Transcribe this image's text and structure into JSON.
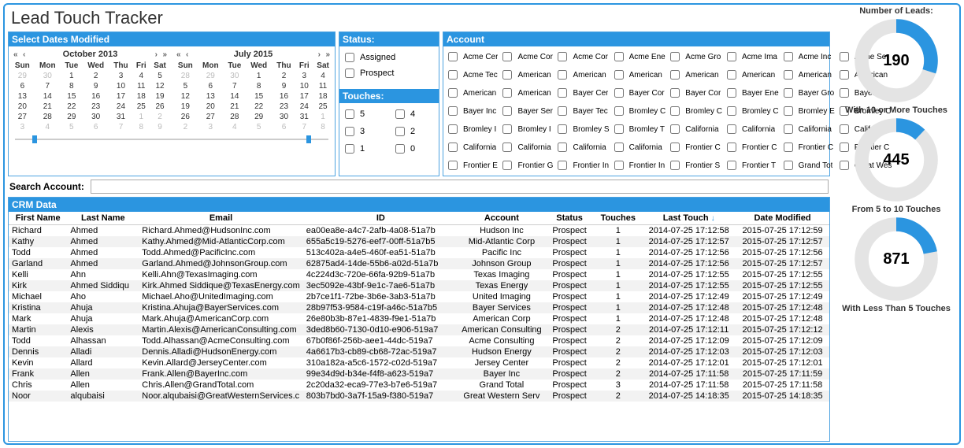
{
  "colors": {
    "accent": "#2b95e0",
    "track": "#e4e4e4",
    "text": "#333333",
    "dim": "#bbbbbb",
    "rowAlt": "#f2f2f2"
  },
  "title": "Lead Touch Tracker",
  "dates": {
    "header": "Select Dates Modified",
    "left": {
      "label": "October 2013",
      "days": [
        "Sun",
        "Mon",
        "Tue",
        "Wed",
        "Thu",
        "Fri",
        "Sat"
      ],
      "cells": [
        [
          "29",
          "30",
          "1",
          "2",
          "3",
          "4",
          "5"
        ],
        [
          "6",
          "7",
          "8",
          "9",
          "10",
          "11",
          "12"
        ],
        [
          "13",
          "14",
          "15",
          "16",
          "17",
          "18",
          "19"
        ],
        [
          "20",
          "21",
          "22",
          "23",
          "24",
          "25",
          "26"
        ],
        [
          "27",
          "28",
          "29",
          "30",
          "31",
          "1",
          "2"
        ],
        [
          "3",
          "4",
          "5",
          "6",
          "7",
          "8",
          "9"
        ]
      ],
      "dim": [
        [
          0,
          0
        ],
        [
          0,
          1
        ],
        [
          4,
          5
        ],
        [
          4,
          6
        ],
        [
          5,
          0
        ],
        [
          5,
          1
        ],
        [
          5,
          2
        ],
        [
          5,
          3
        ],
        [
          5,
          4
        ],
        [
          5,
          5
        ],
        [
          5,
          6
        ]
      ]
    },
    "right": {
      "label": "July 2015",
      "days": [
        "Sun",
        "Mon",
        "Tue",
        "Wed",
        "Thu",
        "Fri",
        "Sat"
      ],
      "cells": [
        [
          "28",
          "29",
          "30",
          "1",
          "2",
          "3",
          "4"
        ],
        [
          "5",
          "6",
          "7",
          "8",
          "9",
          "10",
          "11"
        ],
        [
          "12",
          "13",
          "14",
          "15",
          "16",
          "17",
          "18"
        ],
        [
          "19",
          "20",
          "21",
          "22",
          "23",
          "24",
          "25"
        ],
        [
          "26",
          "27",
          "28",
          "29",
          "30",
          "31",
          "1"
        ],
        [
          "2",
          "3",
          "4",
          "5",
          "6",
          "7",
          "8"
        ]
      ],
      "dim": [
        [
          0,
          0
        ],
        [
          0,
          1
        ],
        [
          0,
          2
        ],
        [
          4,
          6
        ],
        [
          5,
          0
        ],
        [
          5,
          1
        ],
        [
          5,
          2
        ],
        [
          5,
          3
        ],
        [
          5,
          4
        ],
        [
          5,
          5
        ],
        [
          5,
          6
        ]
      ]
    }
  },
  "status": {
    "header": "Status:",
    "items": [
      "Assigned",
      "Prospect"
    ]
  },
  "touches": {
    "header": "Touches:",
    "items": [
      "5",
      "4",
      "3",
      "2",
      "1",
      "0"
    ]
  },
  "account": {
    "header": "Account",
    "items": [
      "Acme Cer",
      "Acme Cor",
      "Acme Cor",
      "Acme Ene",
      "Acme Gro",
      "Acme Ima",
      "Acme Inc",
      "Acme Ser",
      "Acme Tec",
      "American",
      "American",
      "American",
      "American",
      "American",
      "American",
      "American",
      "American",
      "American",
      "Bayer Cer",
      "Bayer Cor",
      "Bayer Cor",
      "Bayer Ene",
      "Bayer Gro",
      "Bayer Ima",
      "Bayer Inc",
      "Bayer Ser",
      "Bayer Tec",
      "Bromley C",
      "Bromley C",
      "Bromley C",
      "Bromley E",
      "Bromley C",
      "Bromley I",
      "Bromley I",
      "Bromley S",
      "Bromley T",
      "California",
      "California",
      "California",
      "California",
      "California",
      "California",
      "California",
      "California",
      "Frontier C",
      "Frontier C",
      "Frontier C",
      "Frontier C",
      "Frontier E",
      "Frontier G",
      "Frontier In",
      "Frontier In",
      "Frontier S",
      "Frontier T",
      "Grand Tot",
      "Great Wes"
    ]
  },
  "search": {
    "label": "Search Account:",
    "value": ""
  },
  "crm": {
    "header": "CRM Data",
    "columns": [
      "First Name",
      "Last Name",
      "Email",
      "ID",
      "Account",
      "Status",
      "Touches",
      "Last Touch",
      "Date Modified"
    ],
    "sortCol": 7,
    "rows": [
      [
        "Richard",
        "Ahmed",
        "Richard.Ahmed@HudsonInc.com",
        "ea00ea8e-a4c7-2afb-4a08-51a7b",
        "Hudson Inc",
        "Prospect",
        "1",
        "2014-07-25 17:12:58",
        "2015-07-25 17:12:59"
      ],
      [
        "Kathy",
        "Ahmed",
        "Kathy.Ahmed@Mid-AtlanticCorp.com",
        "655a5c19-5276-eef7-00ff-51a7b5",
        "Mid-Atlantic Corp",
        "Prospect",
        "1",
        "2014-07-25 17:12:57",
        "2015-07-25 17:12:57"
      ],
      [
        "Todd",
        "Ahmed",
        "Todd.Ahmed@PacificInc.com",
        "513c402a-a4e5-460f-ea51-51a7b",
        "Pacific Inc",
        "Prospect",
        "1",
        "2014-07-25 17:12:56",
        "2015-07-25 17:12:56"
      ],
      [
        "Garland",
        "Ahmed",
        "Garland.Ahmed@JohnsonGroup.com",
        "62875ad4-14de-55b6-a02d-51a7b",
        "Johnson Group",
        "Prospect",
        "1",
        "2014-07-25 17:12:56",
        "2015-07-25 17:12:57"
      ],
      [
        "Kelli",
        "Ahn",
        "Kelli.Ahn@TexasImaging.com",
        "4c224d3c-720e-66fa-92b9-51a7b",
        "Texas Imaging",
        "Prospect",
        "1",
        "2014-07-25 17:12:55",
        "2015-07-25 17:12:55"
      ],
      [
        "Kirk",
        "Ahmed Siddiqu",
        "Kirk.Ahmed Siddique@TexasEnergy.com",
        "3ec5092e-43bf-9e1c-7ae6-51a7b",
        "Texas Energy",
        "Prospect",
        "1",
        "2014-07-25 17:12:55",
        "2015-07-25 17:12:55"
      ],
      [
        "Michael",
        "Aho",
        "Michael.Aho@UnitedImaging.com",
        "2b7ce1f1-72be-3b6e-3ab3-51a7b",
        "United Imaging",
        "Prospect",
        "1",
        "2014-07-25 17:12:49",
        "2015-07-25 17:12:49"
      ],
      [
        "Kristina",
        "Ahuja",
        "Kristina.Ahuja@BayerServices.com",
        "28b97f53-9584-c19f-a46c-51a7b5",
        "Bayer Services",
        "Prospect",
        "1",
        "2014-07-25 17:12:48",
        "2015-07-25 17:12:48"
      ],
      [
        "Mark",
        "Ahuja",
        "Mark.Ahuja@AmericanCorp.com",
        "26e80b3b-87e1-4839-f9e1-51a7b",
        "American Corp",
        "Prospect",
        "1",
        "2014-07-25 17:12:48",
        "2015-07-25 17:12:48"
      ],
      [
        "Martin",
        "Alexis",
        "Martin.Alexis@AmericanConsulting.com",
        "3ded8b60-7130-0d10-e906-519a7",
        "American Consulting",
        "Prospect",
        "2",
        "2014-07-25 17:12:11",
        "2015-07-25 17:12:12"
      ],
      [
        "Todd",
        "Alhassan",
        "Todd.Alhassan@AcmeConsulting.com",
        "67b0f86f-256b-aee1-44dc-519a7",
        "Acme Consulting",
        "Prospect",
        "2",
        "2014-07-25 17:12:09",
        "2015-07-25 17:12:09"
      ],
      [
        "Dennis",
        "Alladi",
        "Dennis.Alladi@HudsonEnergy.com",
        "4a6617b3-cb89-cb68-72ac-519a7",
        "Hudson Energy",
        "Prospect",
        "2",
        "2014-07-25 17:12:03",
        "2015-07-25 17:12:03"
      ],
      [
        "Kevin",
        "Allard",
        "Kevin.Allard@JerseyCenter.com",
        "310a182a-a5c6-1572-c02d-519a7",
        "Jersey Center",
        "Prospect",
        "2",
        "2014-07-25 17:12:01",
        "2015-07-25 17:12:01"
      ],
      [
        "Frank",
        "Allen",
        "Frank.Allen@BayerInc.com",
        "99e34d9d-b34e-f4f8-a623-519a7",
        "Bayer Inc",
        "Prospect",
        "2",
        "2014-07-25 17:11:58",
        "2015-07-25 17:11:59"
      ],
      [
        "Chris",
        "Allen",
        "Chris.Allen@GrandTotal.com",
        "2c20da32-eca9-77e3-b7e6-519a7",
        "Grand Total",
        "Prospect",
        "3",
        "2014-07-25 17:11:58",
        "2015-07-25 17:11:58"
      ],
      [
        "Noor",
        "alqubaisi",
        "Noor.alqubaisi@GreatWesternServices.c",
        "803b7bd0-3a7f-15a9-f380-519a7",
        "Great Western Serv",
        "Prospect",
        "2",
        "2014-07-25 14:18:35",
        "2015-07-25 14:18:35"
      ]
    ]
  },
  "gauges": [
    {
      "title": "Number of Leads:",
      "value": "190",
      "fill": 0.3
    },
    {
      "title": "With 10 or More Touches",
      "value": "445",
      "fill": 0.12
    },
    {
      "title": "From 5 to 10 Touches",
      "value": "871",
      "fill": 0.22
    },
    {
      "title": "With Less Than 5 Touches",
      "value": "",
      "fill": 0
    }
  ]
}
